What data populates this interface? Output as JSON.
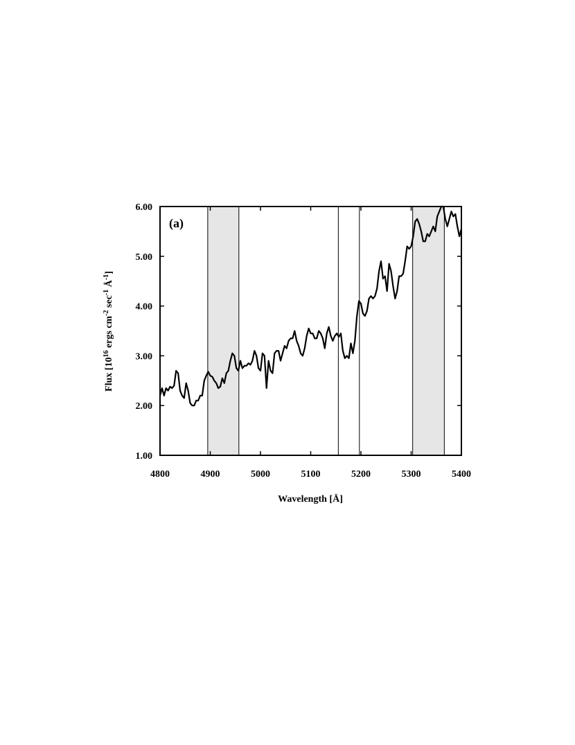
{
  "chart_data": {
    "type": "line",
    "annotation": "(a)",
    "xlabel": "Wavelength [Å]",
    "ylabel": [
      {
        "text": "Flux [10"
      },
      {
        "text": "16",
        "sup": true
      },
      {
        "text": " ergs cm"
      },
      {
        "text": "-2",
        "sup": true
      },
      {
        "text": " sec"
      },
      {
        "text": "-1",
        "sup": true
      },
      {
        "text": " Å"
      },
      {
        "text": "-1",
        "sup": true
      },
      {
        "text": "]"
      }
    ],
    "xlim": [
      4800,
      5400
    ],
    "xticks": [
      4800,
      4900,
      5000,
      5100,
      5200,
      5300,
      5400
    ],
    "ylim": [
      1,
      6
    ],
    "yticks": [
      {
        "value": 1,
        "label": "1.00"
      },
      {
        "value": 2,
        "label": "2.00"
      },
      {
        "value": 3,
        "label": "3.00"
      },
      {
        "value": 4,
        "label": "4.00"
      },
      {
        "value": 5,
        "label": "5.00"
      },
      {
        "value": 6,
        "label": "6.00"
      }
    ],
    "shaded_regions": [
      [
        4895,
        4957
      ],
      [
        5303,
        5366
      ]
    ],
    "shade_color": "#e6e6e6",
    "vertical_lines": [
      5155,
      5197
    ],
    "series": [
      {
        "color": "#000000",
        "x": [
          4800,
          4804,
          4808,
          4812,
          4816,
          4820,
          4824,
          4828,
          4832,
          4836,
          4840,
          4844,
          4848,
          4852,
          4856,
          4860,
          4864,
          4868,
          4872,
          4876,
          4880,
          4884,
          4888,
          4892,
          4896,
          4900,
          4904,
          4908,
          4912,
          4916,
          4920,
          4924,
          4928,
          4932,
          4936,
          4940,
          4944,
          4948,
          4952,
          4956,
          4960,
          4964,
          4968,
          4972,
          4976,
          4980,
          4984,
          4988,
          4992,
          4996,
          5000,
          5004,
          5008,
          5012,
          5016,
          5020,
          5024,
          5028,
          5032,
          5036,
          5040,
          5044,
          5048,
          5052,
          5056,
          5060,
          5064,
          5068,
          5072,
          5076,
          5080,
          5084,
          5088,
          5092,
          5096,
          5100,
          5104,
          5108,
          5112,
          5116,
          5120,
          5124,
          5128,
          5132,
          5136,
          5140,
          5144,
          5148,
          5152,
          5156,
          5160,
          5164,
          5168,
          5172,
          5176,
          5180,
          5184,
          5188,
          5192,
          5196,
          5200,
          5204,
          5208,
          5212,
          5216,
          5220,
          5224,
          5228,
          5232,
          5236,
          5240,
          5244,
          5248,
          5252,
          5256,
          5260,
          5264,
          5268,
          5272,
          5276,
          5280,
          5284,
          5288,
          5292,
          5296,
          5300,
          5304,
          5308,
          5312,
          5316,
          5320,
          5324,
          5328,
          5332,
          5336,
          5340,
          5344,
          5348,
          5352,
          5356,
          5360,
          5364,
          5368,
          5372,
          5376,
          5380,
          5384,
          5388,
          5392,
          5396,
          5400
        ],
        "values": [
          2.2,
          2.35,
          2.2,
          2.35,
          2.3,
          2.38,
          2.35,
          2.4,
          2.7,
          2.65,
          2.3,
          2.2,
          2.15,
          2.45,
          2.3,
          2.05,
          2.0,
          2.0,
          2.1,
          2.1,
          2.2,
          2.2,
          2.5,
          2.6,
          2.68,
          2.6,
          2.58,
          2.5,
          2.45,
          2.35,
          2.38,
          2.55,
          2.45,
          2.65,
          2.7,
          2.9,
          3.05,
          3.0,
          2.75,
          2.7,
          2.9,
          2.75,
          2.8,
          2.8,
          2.85,
          2.82,
          2.9,
          3.1,
          3.0,
          2.75,
          2.7,
          3.05,
          3.0,
          2.35,
          2.9,
          2.7,
          2.65,
          3.05,
          3.1,
          3.1,
          2.9,
          3.05,
          3.2,
          3.15,
          3.3,
          3.35,
          3.35,
          3.5,
          3.3,
          3.2,
          3.05,
          3.0,
          3.15,
          3.4,
          3.55,
          3.45,
          3.45,
          3.35,
          3.35,
          3.5,
          3.45,
          3.35,
          3.15,
          3.45,
          3.58,
          3.4,
          3.3,
          3.4,
          3.45,
          3.38,
          3.45,
          3.1,
          2.95,
          3.0,
          2.95,
          3.25,
          3.05,
          3.3,
          3.8,
          4.1,
          4.05,
          3.85,
          3.8,
          3.9,
          4.15,
          4.2,
          4.15,
          4.2,
          4.35,
          4.7,
          4.9,
          4.55,
          4.6,
          4.3,
          4.85,
          4.7,
          4.4,
          4.15,
          4.3,
          4.6,
          4.6,
          4.65,
          4.9,
          5.2,
          5.15,
          5.2,
          5.4,
          5.7,
          5.75,
          5.65,
          5.5,
          5.3,
          5.3,
          5.45,
          5.4,
          5.5,
          5.6,
          5.5,
          5.8,
          5.9,
          6.0,
          6.0,
          5.75,
          5.6,
          5.75,
          5.9,
          5.8,
          5.85,
          5.6,
          5.4,
          5.55
        ]
      }
    ]
  }
}
